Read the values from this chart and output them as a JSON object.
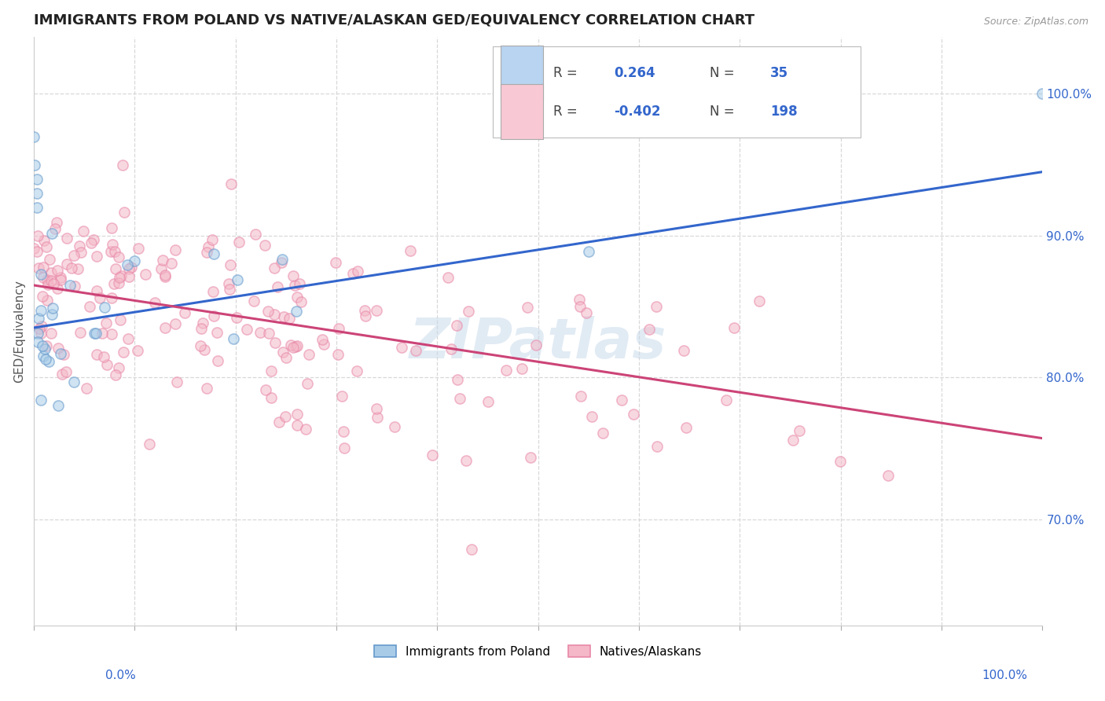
{
  "title": "IMMIGRANTS FROM POLAND VS NATIVE/ALASKAN GED/EQUIVALENCY CORRELATION CHART",
  "source": "Source: ZipAtlas.com",
  "ylabel": "GED/Equivalency",
  "x_min": 0.0,
  "x_max": 1.0,
  "y_min": 0.625,
  "y_max": 1.04,
  "right_yticks": [
    0.7,
    0.8,
    0.9,
    1.0
  ],
  "right_yticklabels": [
    "70.0%",
    "80.0%",
    "90.0%",
    "100.0%"
  ],
  "xtick_left_label": "0.0%",
  "xtick_right_label": "100.0%",
  "blue_line": {
    "x_start": 0.0,
    "x_end": 1.0,
    "y_start": 0.835,
    "y_end": 0.945
  },
  "pink_line": {
    "x_start": 0.0,
    "x_end": 1.0,
    "y_start": 0.865,
    "y_end": 0.757
  },
  "blue_color": "#a8cce8",
  "pink_color": "#f4b8c8",
  "blue_edge_color": "#6699cc",
  "pink_edge_color": "#e888a8",
  "blue_line_color": "#3366cc",
  "pink_line_color": "#cc4477",
  "title_fontsize": 13,
  "legend_box_color_blue": "#b8d4f0",
  "legend_box_color_pink": "#f8c8d4",
  "watermark": "ZIPatlas",
  "background_color": "#ffffff",
  "gridline_color": "#d8d8d8",
  "legend_R_color": "#444444",
  "legend_N_color": "#3366cc",
  "seed": 42
}
